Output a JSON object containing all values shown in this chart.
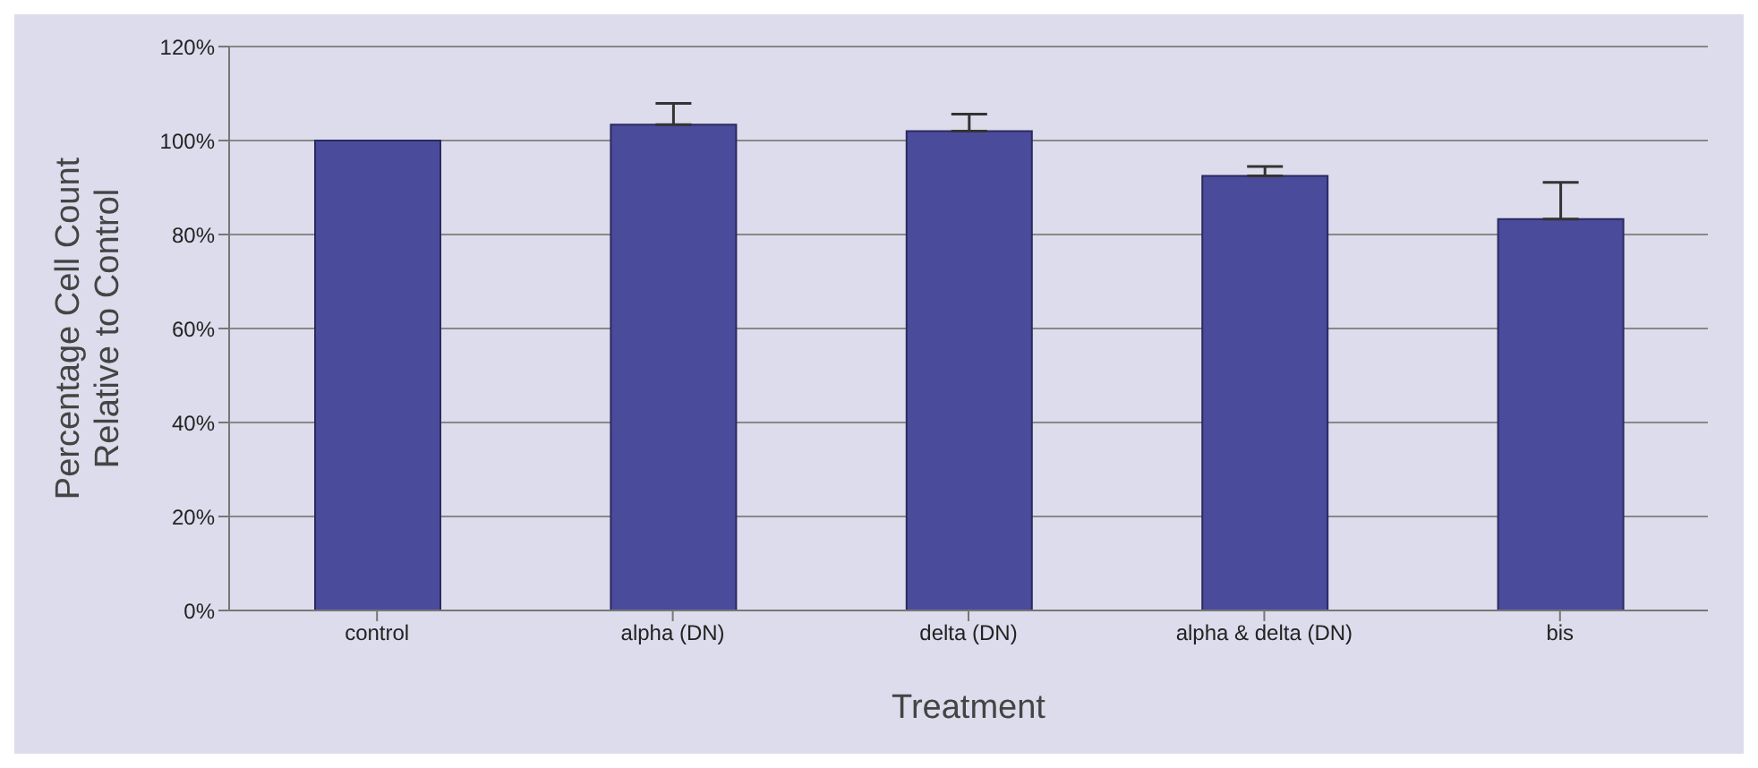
{
  "chart_data": {
    "type": "bar",
    "xlabel": "Treatment",
    "ylabel": "Percentage Cell Count Relative to Control",
    "categories": [
      "control",
      "alpha (DN)",
      "delta (DN)",
      "alpha & delta (DN)",
      "bis"
    ],
    "values": [
      100,
      103.4,
      102,
      92.5,
      83.3
    ],
    "errors": [
      null,
      [
        103.4,
        107.9
      ],
      [
        102,
        105.6
      ],
      [
        92.5,
        94.5
      ],
      [
        83.3,
        91.1
      ]
    ],
    "color": "#4b4b9c",
    "ylim": [
      0,
      120
    ],
    "yticks": [
      {
        "value": 0,
        "label": "0%"
      },
      {
        "value": 20,
        "label": "20%"
      },
      {
        "value": 40,
        "label": "40%"
      },
      {
        "value": 60,
        "label": "60%"
      },
      {
        "value": 80,
        "label": "80%"
      },
      {
        "value": 100,
        "label": "100%"
      },
      {
        "value": 120,
        "label": "120%"
      }
    ],
    "grid": "y"
  }
}
